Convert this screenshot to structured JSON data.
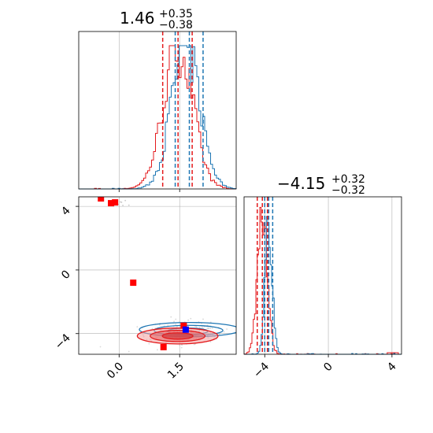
{
  "chart_data": {
    "type": "corner",
    "colors": {
      "series_a": "#1f77b4",
      "series_b": "#e41a1c",
      "grid": "#b0b0b0",
      "marker": "#ff0000",
      "marker_alt": "#0000ff"
    },
    "params": [
      {
        "title_main": "1.46",
        "title_plus": "+0.35",
        "title_minus": "−0.38",
        "range": [
          -1.0,
          2.9
        ],
        "grid": [
          0.0,
          1.5
        ]
      },
      {
        "title_main": "−4.15",
        "title_plus": "+0.32",
        "title_minus": "−0.32",
        "range": [
          -5.3,
          4.6
        ],
        "grid": [
          -4,
          0,
          4
        ]
      }
    ],
    "x_ticks": [
      {
        "value": 0.0,
        "label": "0.0"
      },
      {
        "value": 1.5,
        "label": "1.5"
      }
    ],
    "y_ticks": [
      {
        "value": 4,
        "label": "4"
      },
      {
        "value": 0,
        "label": "0"
      },
      {
        "value": -4,
        "label": "−4"
      }
    ],
    "diag2_ticks": [
      {
        "value": -4,
        "label": "−4"
      },
      {
        "value": 0,
        "label": "0"
      },
      {
        "value": 4,
        "label": "4"
      }
    ],
    "hist1": {
      "blue": {
        "center": 1.65,
        "sigma": 0.35,
        "quantiles": [
          1.39,
          1.74,
          2.08
        ]
      },
      "red": {
        "center": 1.46,
        "sigma": 0.36,
        "quantiles": [
          1.08,
          1.46,
          1.81
        ]
      }
    },
    "hist2": {
      "blue": {
        "center": -3.75,
        "sigma": 0.22,
        "quantiles": [
          -4.0,
          -3.75,
          -3.5
        ]
      },
      "red": {
        "center": -4.15,
        "sigma": 0.3,
        "quantiles": [
          -4.47,
          -4.15,
          -3.83
        ]
      }
    },
    "scatter_markers": [
      {
        "x": -0.45,
        "y": 4.5,
        "color": "red"
      },
      {
        "x": -0.2,
        "y": 4.2,
        "color": "red"
      },
      {
        "x": -0.1,
        "y": 4.25,
        "color": "red"
      },
      {
        "x": 0.35,
        "y": -0.8,
        "color": "red"
      },
      {
        "x": 1.1,
        "y": -4.85,
        "color": "red"
      },
      {
        "x": 1.6,
        "y": -3.5,
        "color": "red"
      },
      {
        "x": 1.65,
        "y": -3.75,
        "color": "blue"
      }
    ]
  }
}
